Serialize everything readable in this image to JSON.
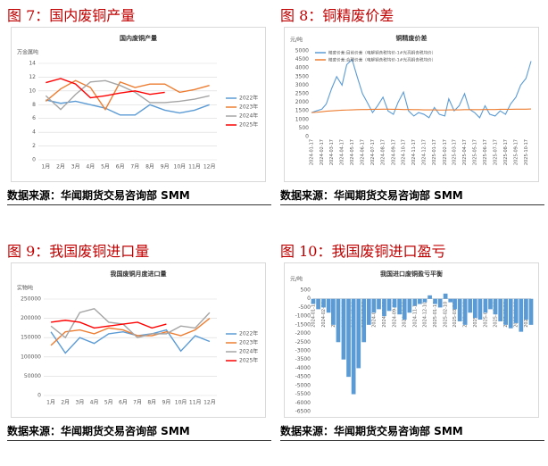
{
  "panels": [
    {
      "heading": "图 7：国内废铜产量",
      "source": "数据来源：华闻期货交易咨询部 SMM"
    },
    {
      "heading": "图 8：铜精废价差",
      "source": "数据来源：华闻期货交易咨询部 SMM"
    },
    {
      "heading": "图 9：我国废铜进口量",
      "source": "数据来源：华闻期货交易咨询部 SMM"
    },
    {
      "heading": "图 10：我国废铜进口盈亏",
      "source": "数据来源：华闻期货交易咨询部 SMM"
    }
  ],
  "chart_data": [
    {
      "type": "line",
      "title": "国内废铜产量",
      "y_label": "万金属吨",
      "categories": [
        "1月",
        "2月",
        "3月",
        "4月",
        "5月",
        "6月",
        "7月",
        "8月",
        "9月",
        "10月",
        "11月",
        "12月"
      ],
      "series": [
        {
          "name": "2022年",
          "color": "#5b9bd5",
          "values": [
            8.7,
            8.2,
            8.5,
            8.0,
            7.5,
            6.5,
            6.5,
            8.0,
            7.2,
            6.8,
            7.2,
            8.0
          ]
        },
        {
          "name": "2023年",
          "color": "#ed7d31",
          "values": [
            8.5,
            10.3,
            11.5,
            10.5,
            7.3,
            11.3,
            10.5,
            11.0,
            11.0,
            9.8,
            10.2,
            10.8
          ]
        },
        {
          "name": "2024年",
          "color": "#a5a5a5",
          "values": [
            9.3,
            7.3,
            9.5,
            11.3,
            11.5,
            10.8,
            9.8,
            8.3,
            8.3,
            8.5,
            8.8,
            9.3
          ]
        },
        {
          "name": "2025年",
          "color": "#ff0000",
          "values": [
            11.2,
            11.8,
            11.0,
            9.0,
            9.3,
            9.7,
            10.0,
            9.5,
            9.8,
            null,
            null,
            null
          ]
        }
      ],
      "ylim": [
        0,
        14
      ],
      "yticks": [
        0,
        2,
        4,
        6,
        8,
        10,
        12,
        14
      ],
      "grid": true,
      "legend": "right"
    },
    {
      "type": "line",
      "title": "铜精废价差",
      "y_label": "元/吨",
      "x": [
        "2024-01-17",
        "2024-02-01",
        "2024-02-17",
        "2024-03-01",
        "2024-03-17",
        "2024-04-01",
        "2024-04-17",
        "2024-05-01",
        "2024-05-17",
        "2024-06-01",
        "2024-06-17",
        "2024-07-01",
        "2024-07-17",
        "2024-08-01",
        "2024-08-17",
        "2024-09-01",
        "2024-09-17",
        "2024-10-01",
        "2024-10-17",
        "2024-11-01",
        "2024-11-17",
        "2024-12-01",
        "2024-12-17",
        "2025-01-01",
        "2025-01-17",
        "2025-02-01",
        "2025-02-17",
        "2025-03-01",
        "2025-03-17",
        "2025-04-01",
        "2025-04-17",
        "2025-05-01",
        "2025-05-17",
        "2025-06-01",
        "2025-06-17",
        "2025-07-01",
        "2025-07-17",
        "2025-08-01",
        "2025-08-17",
        "2025-09-01",
        "2025-09-17",
        "2025-10-01",
        "2025-10-17",
        "2025-11-01"
      ],
      "series": [
        {
          "name": "精废价差:目前价差（电解铜含税均价-1#光亮铜含税均价）",
          "color": "#5b9bd5",
          "values": [
            1400,
            1500,
            1600,
            1900,
            2800,
            3500,
            3000,
            4200,
            4500,
            3500,
            2500,
            2000,
            1400,
            1800,
            2300,
            1500,
            1300,
            2000,
            2600,
            1500,
            1200,
            1400,
            1300,
            1100,
            1700,
            1300,
            1200,
            2200,
            1500,
            1800,
            2500,
            1600,
            1400,
            1100,
            1800,
            1300,
            1200,
            1500,
            1300,
            1900,
            2300,
            3000,
            3400,
            4400
          ]
        },
        {
          "name": "精废价差:合理价差（电解铜含税均价-1#光亮铜含税均价）",
          "color": "#ed7d31",
          "values": [
            1400,
            1420,
            1450,
            1480,
            1500,
            1520,
            1540,
            1550,
            1560,
            1570,
            1580,
            1580,
            1590,
            1590,
            1600,
            1600,
            1590,
            1590,
            1580,
            1580,
            1570,
            1570,
            1560,
            1560,
            1560,
            1550,
            1550,
            1560,
            1560,
            1560,
            1570,
            1570,
            1570,
            1570,
            1580,
            1580,
            1580,
            1590,
            1590,
            1590,
            1600,
            1600,
            1600,
            1610
          ]
        }
      ],
      "xticks": [
        "2024-01-17",
        "2024-02-17",
        "2024-03-17",
        "2024-04-17",
        "2024-05-17",
        "2024-06-17",
        "2024-07-17",
        "2024-08-17",
        "2024-09-17",
        "2024-10-17",
        "2024-11-17",
        "2024-12-17",
        "2025-01-17",
        "2025-02-17",
        "2025-03-17",
        "2025-04-17",
        "2025-05-17",
        "2025-06-17",
        "2025-07-17",
        "2025-08-17",
        "2025-09-17",
        "2025-10-17"
      ],
      "ylim": [
        0,
        5000
      ],
      "yticks": [
        0,
        500,
        1000,
        1500,
        2000,
        2500,
        3000,
        3500,
        4000,
        4500,
        5000
      ],
      "grid": false,
      "legend": "top-left"
    },
    {
      "type": "line",
      "title": "我国废铜月度进口量",
      "y_label": "实物吨",
      "categories": [
        "1月",
        "2月",
        "3月",
        "4月",
        "5月",
        "6月",
        "7月",
        "8月",
        "9月",
        "10月",
        "11月",
        "12月"
      ],
      "series": [
        {
          "name": "2022年",
          "color": "#5b9bd5",
          "values": [
            165000,
            110000,
            150000,
            135000,
            160000,
            165000,
            155000,
            160000,
            170000,
            115000,
            155000,
            140000
          ]
        },
        {
          "name": "2023年",
          "color": "#ed7d31",
          "values": [
            130000,
            165000,
            170000,
            160000,
            175000,
            170000,
            155000,
            155000,
            165000,
            155000,
            170000,
            200000
          ]
        },
        {
          "name": "2024年",
          "color": "#a5a5a5",
          "values": [
            180000,
            150000,
            215000,
            225000,
            190000,
            185000,
            150000,
            160000,
            160000,
            180000,
            175000,
            215000
          ]
        },
        {
          "name": "2025年",
          "color": "#ff0000",
          "values": [
            190000,
            195000,
            190000,
            175000,
            180000,
            185000,
            190000,
            175000,
            185000,
            null,
            null,
            null
          ]
        }
      ],
      "ylim": [
        0,
        250000
      ],
      "yticks": [
        0,
        50000,
        100000,
        150000,
        200000,
        250000
      ],
      "grid": true,
      "legend": "right"
    },
    {
      "type": "bar",
      "title": "我国进口废铜盈亏平衡",
      "y_label": "元/吨",
      "color": "#5b9bd5",
      "x": [
        "2024-01-10",
        "2024-01-25",
        "2024-02-10",
        "2024-02-25",
        "2024-03-10",
        "2024-03-25",
        "2024-04-10",
        "2024-04-25",
        "2024-05-10",
        "2024-05-25",
        "2024-06-10",
        "2024-06-25",
        "2024-07-10",
        "2024-07-25",
        "2024-08-10",
        "2024-08-25",
        "2024-09-10",
        "2024-09-25",
        "2024-10-10",
        "2024-10-25",
        "2024-11-10",
        "2024-11-25",
        "2024-12-10",
        "2024-12-25",
        "2025-01-10",
        "2025-01-25",
        "2025-02-10",
        "2025-02-25",
        "2025-03-10",
        "2025-03-25",
        "2025-04-10",
        "2025-04-25",
        "2025-05-10",
        "2025-05-25",
        "2025-06-10",
        "2025-06-25",
        "2025-07-10",
        "2025-07-25",
        "2025-08-10",
        "2025-08-25",
        "2025-09-10",
        "2025-09-25",
        "2025-10-10",
        "2025-10-25"
      ],
      "values": [
        -300,
        -600,
        -500,
        -800,
        -1500,
        -2500,
        -3500,
        -4500,
        -5500,
        -4000,
        -2500,
        -1500,
        -800,
        -600,
        -1000,
        -700,
        -500,
        -900,
        -1200,
        -800,
        -400,
        -300,
        -200,
        200,
        -300,
        -500,
        300,
        -200,
        -600,
        -1300,
        -1500,
        -800,
        -1100,
        -1200,
        -800,
        -600,
        -900,
        -1300,
        -1500,
        -1700,
        -1400,
        -1900,
        -1200,
        -1500
      ],
      "xticks": [
        "2024-01-10",
        "2024-02-10",
        "2024-03-10",
        "2024-04-10",
        "2024-05-10",
        "2024-06-10",
        "2024-07-10",
        "2024-08-10",
        "2024-09-10",
        "2024-10-10",
        "2024-11-10",
        "2024-12-10",
        "2025-01-10",
        "2025-02-10",
        "2025-03-10",
        "2025-04-10",
        "2025-05-10",
        "2025-06-10",
        "2025-07-10",
        "2025-08-10",
        "2025-09-10",
        "2025-10-10"
      ],
      "ylim": [
        -6500,
        500
      ],
      "yticks": [
        -6500,
        -6000,
        -5500,
        -5000,
        -4500,
        -4000,
        -3500,
        -3000,
        -2500,
        -2000,
        -1500,
        -1000,
        -500,
        0,
        500
      ],
      "grid": false
    }
  ]
}
